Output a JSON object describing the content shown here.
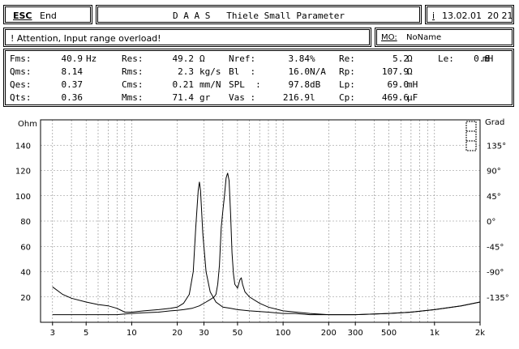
{
  "header": {
    "esc_label": "ESC",
    "end_label": "End",
    "title": "D A A S   Thiele Small Parameter",
    "info_label": "i",
    "datetime": "13.02.01  20 21"
  },
  "status": {
    "warning": "! Attention, Input range overload!",
    "mo_label": "MO:",
    "mo_value": "NoName"
  },
  "params": [
    [
      {
        "label": "Fms:",
        "value": "40.9",
        "unit": "Hz"
      },
      {
        "label": "Res:",
        "value": "49.2",
        "unit": "Ω"
      },
      {
        "label": "Nref:",
        "value": "3.84",
        "unit": "%"
      },
      {
        "label": "Re:",
        "value": "5.2",
        "unit": "Ω"
      },
      {
        "label": "Le:",
        "value": "0.8",
        "unit": "mH"
      }
    ],
    [
      {
        "label": "Qms:",
        "value": "8.14",
        "unit": ""
      },
      {
        "label": "Rms:",
        "value": "2.3",
        "unit": "kg/s"
      },
      {
        "label": "Bl  :",
        "value": "16.0",
        "unit": "N/A"
      },
      {
        "label": "Rp:",
        "value": "107.9",
        "unit": "Ω"
      }
    ],
    [
      {
        "label": "Qes:",
        "value": "0.37",
        "unit": ""
      },
      {
        "label": "Cms:",
        "value": "0.21",
        "unit": "mm/N"
      },
      {
        "label": "SPL  :",
        "value": "97.8",
        "unit": "dB"
      },
      {
        "label": "Lp:",
        "value": "69.0",
        "unit": "mH"
      }
    ],
    [
      {
        "label": "Qts:",
        "value": "0.36",
        "unit": ""
      },
      {
        "label": "Mms:",
        "value": "71.4",
        "unit": "gr"
      },
      {
        "label": "Vas :",
        "value": "216.9",
        "unit": "l"
      },
      {
        "label": "Cp:",
        "value": "469.6",
        "unit": "µF"
      }
    ]
  ],
  "chart_data": {
    "type": "line",
    "x_scale": "log",
    "xlim": [
      2.5,
      2000
    ],
    "ylim": [
      0,
      160
    ],
    "y2lim": [
      -180,
      180
    ],
    "ylabel": "Ohm",
    "y2label": "Grad",
    "x_ticks": [
      3,
      5,
      10,
      20,
      30,
      50,
      100,
      200,
      300,
      500,
      1000,
      2000
    ],
    "x_tick_labels": [
      "3",
      "5",
      "10",
      "20",
      "30",
      "50",
      "100",
      "200",
      "300",
      "500",
      "1k",
      "2k"
    ],
    "y_ticks": [
      20,
      40,
      60,
      80,
      100,
      120,
      140
    ],
    "y_tick_labels": [
      "20",
      "40",
      "60",
      "80",
      "100",
      "120",
      "140"
    ],
    "y2_ticks": [
      -135,
      -90,
      -45,
      0,
      45,
      90,
      135
    ],
    "y2_tick_labels": [
      "-135°",
      "-90°",
      "-45°",
      "0°",
      "45°",
      "90°",
      "135°"
    ],
    "grid": true,
    "series": [
      {
        "points": [
          [
            3,
            28
          ],
          [
            3.5,
            22
          ],
          [
            4,
            19
          ],
          [
            5,
            16
          ],
          [
            6,
            14
          ],
          [
            7,
            13
          ],
          [
            8,
            11
          ],
          [
            9,
            8
          ],
          [
            10,
            8
          ],
          [
            12,
            9
          ],
          [
            15,
            10
          ],
          [
            18,
            11
          ],
          [
            20,
            12
          ],
          [
            22,
            15
          ],
          [
            24,
            22
          ],
          [
            25.5,
            40
          ],
          [
            26.5,
            75
          ],
          [
            27.5,
            104
          ],
          [
            28,
            111
          ],
          [
            28.5,
            104
          ],
          [
            29.5,
            70
          ],
          [
            31,
            40
          ],
          [
            33,
            24
          ],
          [
            36,
            16
          ],
          [
            40,
            12
          ],
          [
            45,
            11
          ],
          [
            50,
            10
          ],
          [
            60,
            9
          ],
          [
            80,
            8
          ],
          [
            100,
            7
          ],
          [
            120,
            7
          ],
          [
            150,
            6
          ],
          [
            200,
            6
          ],
          [
            300,
            6
          ],
          [
            500,
            7
          ],
          [
            700,
            8
          ],
          [
            1000,
            10
          ],
          [
            1500,
            13
          ],
          [
            2000,
            16
          ]
        ]
      },
      {
        "points": [
          [
            3,
            6
          ],
          [
            4,
            6
          ],
          [
            5,
            6
          ],
          [
            6,
            6
          ],
          [
            7,
            6
          ],
          [
            8,
            6
          ],
          [
            9,
            6.5
          ],
          [
            10,
            7
          ],
          [
            12,
            7.5
          ],
          [
            15,
            8
          ],
          [
            18,
            9
          ],
          [
            20,
            9.5
          ],
          [
            22,
            10
          ],
          [
            25,
            11
          ],
          [
            28,
            13
          ],
          [
            31,
            16
          ],
          [
            33,
            18
          ],
          [
            35,
            20
          ],
          [
            36,
            22
          ],
          [
            37,
            30
          ],
          [
            38,
            45
          ],
          [
            39,
            75
          ],
          [
            40,
            88
          ],
          [
            41,
            100
          ],
          [
            42,
            114
          ],
          [
            43,
            118
          ],
          [
            44,
            112
          ],
          [
            45,
            85
          ],
          [
            46,
            55
          ],
          [
            47,
            38
          ],
          [
            48,
            30
          ],
          [
            50,
            27
          ],
          [
            52,
            34
          ],
          [
            53,
            35
          ],
          [
            54,
            30
          ],
          [
            56,
            24
          ],
          [
            60,
            20
          ],
          [
            70,
            15
          ],
          [
            80,
            12
          ],
          [
            100,
            9
          ],
          [
            150,
            7
          ],
          [
            200,
            6
          ],
          [
            300,
            6
          ],
          [
            500,
            7
          ],
          [
            700,
            8
          ],
          [
            1000,
            10
          ],
          [
            1500,
            13
          ],
          [
            2000,
            16
          ]
        ]
      }
    ]
  }
}
